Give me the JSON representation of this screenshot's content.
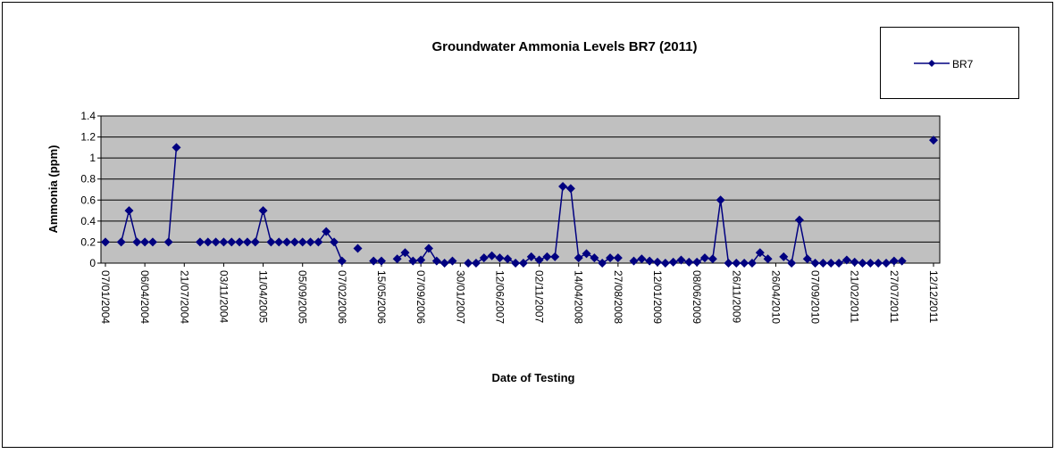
{
  "chart_data": {
    "type": "line",
    "title": "Groundwater Ammonia Levels BR7 (2011)",
    "x_label": "Date of Testing",
    "y_label": "Ammonia (ppm)",
    "categories": [
      "07/01/2004",
      null,
      null,
      null,
      null,
      "06/04/2004",
      null,
      null,
      null,
      null,
      "21/07/2004",
      null,
      null,
      null,
      null,
      "03/11/2004",
      null,
      null,
      null,
      null,
      "11/04/2005",
      null,
      null,
      null,
      null,
      "05/09/2005",
      null,
      null,
      null,
      null,
      "07/02/2006",
      null,
      null,
      null,
      null,
      "15/05/2006",
      null,
      null,
      null,
      null,
      "07/09/2006",
      null,
      null,
      null,
      null,
      "30/01/2007",
      null,
      null,
      null,
      null,
      "12/06/2007",
      null,
      null,
      null,
      null,
      "02/11/2007",
      null,
      null,
      null,
      null,
      "14/04/2008",
      null,
      null,
      null,
      null,
      "27/08/2008",
      null,
      null,
      null,
      null,
      "12/01/2009",
      null,
      null,
      null,
      null,
      "08/06/2009",
      null,
      null,
      null,
      null,
      "26/11/2009",
      null,
      null,
      null,
      null,
      "26/04/2010",
      null,
      null,
      null,
      null,
      "07/09/2010",
      null,
      null,
      null,
      null,
      "21/02/2011",
      null,
      null,
      null,
      null,
      "27/07/2011",
      null,
      null,
      null,
      null,
      "12/12/2011"
    ],
    "series": [
      {
        "name": "BR7",
        "color": "#000080",
        "values": [
          0.2,
          null,
          0.2,
          0.5,
          0.2,
          0.2,
          0.2,
          null,
          0.2,
          1.1,
          null,
          null,
          0.2,
          0.2,
          0.2,
          0.2,
          0.2,
          0.2,
          0.2,
          0.2,
          0.5,
          0.2,
          0.2,
          0.2,
          0.2,
          0.2,
          0.2,
          0.2,
          0.3,
          0.2,
          0.02,
          null,
          0.14,
          null,
          0.02,
          0.02,
          null,
          0.04,
          0.1,
          0.02,
          0.03,
          0.14,
          0.02,
          0,
          0.02,
          null,
          0,
          0,
          0.05,
          0.07,
          0.05,
          0.04,
          0,
          0,
          0.06,
          0.03,
          0.06,
          0.06,
          0.73,
          0.71,
          0.05,
          0.09,
          0.05,
          0,
          0.05,
          0.05,
          null,
          0.02,
          0.04,
          0.02,
          0.01,
          0,
          0.01,
          0.03,
          0.01,
          0.01,
          0.05,
          0.04,
          0.6,
          0,
          0,
          0,
          0,
          0.1,
          0.04,
          null,
          0.06,
          0,
          0.41,
          0.04,
          0,
          0,
          0,
          0,
          0.03,
          0.01,
          0,
          0,
          0,
          0,
          0.02,
          0.02,
          null,
          null,
          null,
          1.17
        ]
      }
    ],
    "ylim": [
      0,
      1.4
    ],
    "yticks": [
      0,
      0.2,
      0.4,
      0.6,
      0.8,
      1,
      1.2,
      1.4
    ],
    "grid": true,
    "legend": "top-right"
  }
}
